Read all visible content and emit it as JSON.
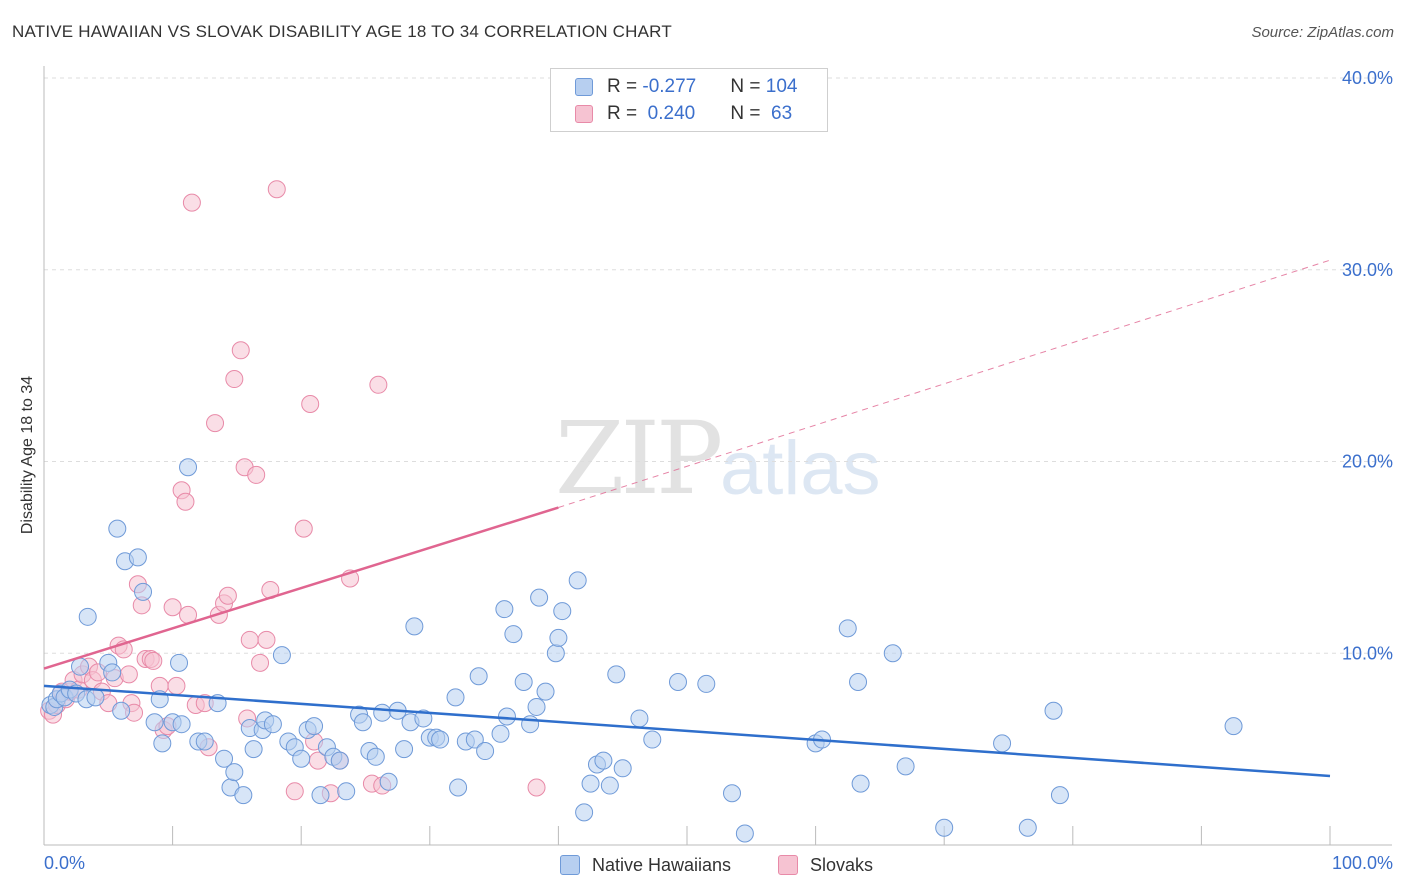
{
  "header": {
    "title": "NATIVE HAWAIIAN VS SLOVAK DISABILITY AGE 18 TO 34 CORRELATION CHART",
    "source": "Source: ZipAtlas.com"
  },
  "watermark": {
    "zip": "ZIP",
    "atlas": "atlas"
  },
  "legend": {
    "rows": [
      {
        "r_label": "R = ",
        "r_value": "-0.277",
        "n_label": "N = ",
        "n_value": "104"
      },
      {
        "r_label": "R = ",
        "r_value": " 0.240",
        "n_label": "N = ",
        "n_value": " 63"
      }
    ]
  },
  "colors": {
    "blue_fill": "#b7cff0",
    "blue_stroke": "#6f9ad8",
    "blue_line": "#2f6fcc",
    "pink_fill": "#f6c3d2",
    "pink_stroke": "#e88aa8",
    "pink_line": "#e06590",
    "axis_label": "#3b6fcc",
    "grid": "#dddddd"
  },
  "chart_data": {
    "type": "scatter",
    "title": "NATIVE HAWAIIAN VS SLOVAK DISABILITY AGE 18 TO 34 CORRELATION CHART",
    "xlabel": "",
    "ylabel": "Disability Age 18 to 34",
    "xlim": [
      0,
      100
    ],
    "ylim": [
      0,
      40
    ],
    "x_tick_labels": [
      "0.0%",
      "100.0%"
    ],
    "y_ticks": [
      10,
      20,
      30,
      40
    ],
    "y_tick_labels": [
      "10.0%",
      "20.0%",
      "30.0%",
      "40.0%"
    ],
    "grid": true,
    "legend_position": "bottom",
    "series": [
      {
        "name": "Native Hawaiians",
        "r": -0.277,
        "n": 104,
        "trend": {
          "x0": 0,
          "y0": 8.3,
          "x1": 100,
          "y1": 3.6
        },
        "points": [
          [
            0.5,
            7.3
          ],
          [
            0.8,
            7.2
          ],
          [
            1.0,
            7.6
          ],
          [
            1.3,
            7.9
          ],
          [
            1.6,
            7.7
          ],
          [
            2.0,
            8.1
          ],
          [
            2.5,
            7.9
          ],
          [
            2.8,
            9.3
          ],
          [
            3.3,
            7.6
          ],
          [
            4.0,
            7.7
          ],
          [
            5.0,
            9.5
          ],
          [
            5.3,
            9.0
          ],
          [
            6.0,
            7.0
          ],
          [
            3.4,
            11.9
          ],
          [
            5.7,
            16.5
          ],
          [
            6.3,
            14.8
          ],
          [
            7.3,
            15.0
          ],
          [
            7.7,
            13.2
          ],
          [
            8.6,
            6.4
          ],
          [
            9.0,
            7.6
          ],
          [
            9.2,
            5.3
          ],
          [
            10.0,
            6.4
          ],
          [
            10.5,
            9.5
          ],
          [
            10.7,
            6.3
          ],
          [
            11.2,
            19.7
          ],
          [
            12.0,
            5.4
          ],
          [
            12.5,
            5.4
          ],
          [
            13.5,
            7.4
          ],
          [
            14.0,
            4.5
          ],
          [
            14.5,
            3.0
          ],
          [
            14.8,
            3.8
          ],
          [
            15.5,
            2.6
          ],
          [
            16.0,
            6.1
          ],
          [
            16.3,
            5.0
          ],
          [
            17.0,
            6.0
          ],
          [
            17.2,
            6.5
          ],
          [
            17.8,
            6.3
          ],
          [
            18.5,
            9.9
          ],
          [
            19.0,
            5.4
          ],
          [
            19.5,
            5.1
          ],
          [
            20.0,
            4.5
          ],
          [
            20.5,
            6.0
          ],
          [
            21.0,
            6.2
          ],
          [
            21.5,
            2.6
          ],
          [
            22.0,
            5.1
          ],
          [
            22.5,
            4.6
          ],
          [
            23.0,
            4.4
          ],
          [
            23.5,
            2.8
          ],
          [
            24.5,
            6.8
          ],
          [
            24.8,
            6.4
          ],
          [
            25.3,
            4.9
          ],
          [
            25.8,
            4.6
          ],
          [
            26.3,
            6.9
          ],
          [
            26.8,
            3.3
          ],
          [
            27.5,
            7.0
          ],
          [
            28.0,
            5.0
          ],
          [
            28.5,
            6.4
          ],
          [
            28.8,
            11.4
          ],
          [
            29.5,
            6.6
          ],
          [
            30.0,
            5.6
          ],
          [
            30.5,
            5.6
          ],
          [
            30.8,
            5.5
          ],
          [
            32.0,
            7.7
          ],
          [
            32.2,
            3.0
          ],
          [
            32.8,
            5.4
          ],
          [
            33.5,
            5.5
          ],
          [
            33.8,
            8.8
          ],
          [
            34.3,
            4.9
          ],
          [
            35.5,
            5.8
          ],
          [
            35.8,
            12.3
          ],
          [
            36.0,
            6.7
          ],
          [
            36.5,
            11.0
          ],
          [
            37.3,
            8.5
          ],
          [
            37.8,
            6.3
          ],
          [
            38.3,
            7.2
          ],
          [
            38.5,
            12.9
          ],
          [
            39.0,
            8.0
          ],
          [
            39.8,
            10.0
          ],
          [
            40.0,
            10.8
          ],
          [
            40.3,
            12.2
          ],
          [
            41.5,
            13.8
          ],
          [
            42.0,
            1.7
          ],
          [
            42.5,
            3.2
          ],
          [
            43.0,
            4.2
          ],
          [
            43.5,
            4.4
          ],
          [
            44.0,
            3.1
          ],
          [
            44.5,
            8.9
          ],
          [
            45.0,
            4.0
          ],
          [
            46.3,
            6.6
          ],
          [
            47.3,
            5.5
          ],
          [
            49.3,
            8.5
          ],
          [
            51.5,
            8.4
          ],
          [
            53.5,
            2.7
          ],
          [
            54.5,
            0.6
          ],
          [
            60.0,
            5.3
          ],
          [
            60.5,
            5.5
          ],
          [
            62.5,
            11.3
          ],
          [
            63.3,
            8.5
          ],
          [
            63.5,
            3.2
          ],
          [
            66.0,
            10.0
          ],
          [
            67.0,
            4.1
          ],
          [
            70.0,
            0.9
          ],
          [
            74.5,
            5.3
          ],
          [
            76.5,
            0.9
          ],
          [
            78.5,
            7.0
          ],
          [
            79.0,
            2.6
          ],
          [
            92.5,
            6.2
          ]
        ]
      },
      {
        "name": "Slovaks",
        "r": 0.24,
        "n": 63,
        "trend": {
          "x0": 0,
          "y0": 9.2,
          "x1": 40,
          "y1": 17.6,
          "dash_x1": 100,
          "dash_y1": 30.5
        },
        "points": [
          [
            0.4,
            7.0
          ],
          [
            0.7,
            6.8
          ],
          [
            1.0,
            7.3
          ],
          [
            1.4,
            8.0
          ],
          [
            1.7,
            7.6
          ],
          [
            2.0,
            8.0
          ],
          [
            2.3,
            8.6
          ],
          [
            2.7,
            8.1
          ],
          [
            3.0,
            8.9
          ],
          [
            3.5,
            9.3
          ],
          [
            3.8,
            8.6
          ],
          [
            4.2,
            9.0
          ],
          [
            4.5,
            8.0
          ],
          [
            5.0,
            7.4
          ],
          [
            5.5,
            8.7
          ],
          [
            5.8,
            10.4
          ],
          [
            6.2,
            10.2
          ],
          [
            6.6,
            8.9
          ],
          [
            6.8,
            7.4
          ],
          [
            7.0,
            6.9
          ],
          [
            7.3,
            13.6
          ],
          [
            7.6,
            12.5
          ],
          [
            7.9,
            9.7
          ],
          [
            8.3,
            9.7
          ],
          [
            8.5,
            9.6
          ],
          [
            9.0,
            8.3
          ],
          [
            9.3,
            6.0
          ],
          [
            9.6,
            6.2
          ],
          [
            10.0,
            12.4
          ],
          [
            10.3,
            8.3
          ],
          [
            10.7,
            18.5
          ],
          [
            11.0,
            17.9
          ],
          [
            11.2,
            12.0
          ],
          [
            11.5,
            33.5
          ],
          [
            11.8,
            7.3
          ],
          [
            12.5,
            7.4
          ],
          [
            12.8,
            5.1
          ],
          [
            13.3,
            22.0
          ],
          [
            13.6,
            12.0
          ],
          [
            14.0,
            12.6
          ],
          [
            14.3,
            13.0
          ],
          [
            14.8,
            24.3
          ],
          [
            15.3,
            25.8
          ],
          [
            15.6,
            19.7
          ],
          [
            15.8,
            6.6
          ],
          [
            16.0,
            10.7
          ],
          [
            16.5,
            19.3
          ],
          [
            16.8,
            9.5
          ],
          [
            17.3,
            10.7
          ],
          [
            17.6,
            13.3
          ],
          [
            18.1,
            34.2
          ],
          [
            19.5,
            2.8
          ],
          [
            20.2,
            16.5
          ],
          [
            20.7,
            23.0
          ],
          [
            21.0,
            5.4
          ],
          [
            21.3,
            4.4
          ],
          [
            22.3,
            2.7
          ],
          [
            23.0,
            4.4
          ],
          [
            23.8,
            13.9
          ],
          [
            25.5,
            3.2
          ],
          [
            26.0,
            24.0
          ],
          [
            26.3,
            3.1
          ],
          [
            38.3,
            3.0
          ]
        ]
      }
    ]
  },
  "bottom_legend": [
    {
      "label": "Native Hawaiians"
    },
    {
      "label": "Slovaks"
    }
  ]
}
